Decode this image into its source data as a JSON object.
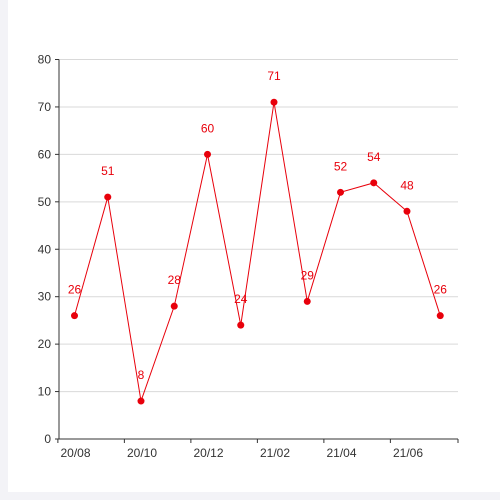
{
  "chart_data": {
    "type": "line",
    "x_tick_labels": [
      "20/08",
      "20/10",
      "20/12",
      "21/02",
      "21/04",
      "21/06"
    ],
    "series": [
      {
        "values": [
          26,
          51,
          8,
          28,
          60,
          24,
          71,
          29,
          52,
          54,
          48,
          26
        ]
      }
    ],
    "ylim": [
      0,
      80
    ],
    "y_ticks": [
      0,
      10,
      20,
      30,
      40,
      50,
      60,
      70,
      80
    ],
    "grid": true,
    "show_data_labels": true,
    "line_color": "#e8000b",
    "label_color": "#e8000b",
    "grid_color": "#d9d9d9",
    "axis_color": "#333333"
  }
}
